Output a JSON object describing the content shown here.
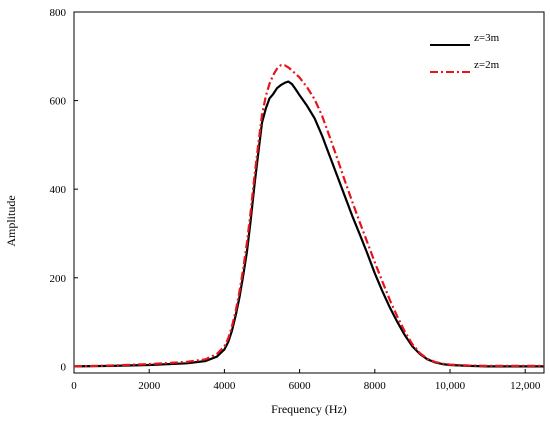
{
  "chart_data": {
    "type": "line",
    "title": "",
    "xlabel": "Frequency (Hz)",
    "ylabel": "Amplitude",
    "xlim": [
      0,
      12500
    ],
    "ylim": [
      -15,
      800
    ],
    "xticks": [
      {
        "value": 0,
        "label": "0"
      },
      {
        "value": 2000,
        "label": "2000"
      },
      {
        "value": 4000,
        "label": "4000"
      },
      {
        "value": 6000,
        "label": "6000"
      },
      {
        "value": 8000,
        "label": "8000"
      },
      {
        "value": 10000,
        "label": "10,000"
      },
      {
        "value": 12000,
        "label": "12,000"
      }
    ],
    "yticks": [
      {
        "value": 0,
        "label": "0"
      },
      {
        "value": 200,
        "label": "200"
      },
      {
        "value": 400,
        "label": "400"
      },
      {
        "value": 600,
        "label": "600"
      },
      {
        "value": 800,
        "label": "800"
      }
    ],
    "grid": false,
    "legend_position": "top-right",
    "series": [
      {
        "name": "z=3m",
        "color": "#000000",
        "style": "solid",
        "x": [
          0,
          1000,
          2000,
          3000,
          3500,
          3800,
          4000,
          4100,
          4200,
          4300,
          4400,
          4500,
          4600,
          4700,
          4800,
          4900,
          5000,
          5100,
          5200,
          5300,
          5400,
          5500,
          5600,
          5700,
          5800,
          5900,
          6000,
          6200,
          6400,
          6600,
          6800,
          7000,
          7200,
          7400,
          7600,
          7800,
          8000,
          8200,
          8400,
          8600,
          8800,
          9000,
          9200,
          9400,
          9600,
          9800,
          10000,
          10500,
          11000,
          12000,
          12500
        ],
        "y": [
          0,
          1,
          3,
          7,
          12,
          22,
          38,
          55,
          80,
          115,
          155,
          205,
          260,
          330,
          410,
          480,
          550,
          582,
          605,
          615,
          628,
          635,
          640,
          643,
          637,
          625,
          612,
          588,
          560,
          520,
          475,
          430,
          385,
          340,
          298,
          255,
          210,
          170,
          133,
          100,
          70,
          45,
          28,
          16,
          9,
          5,
          3,
          1,
          0,
          0,
          0
        ]
      },
      {
        "name": "z=2m",
        "color": "#e8141b",
        "style": "dashdot",
        "x": [
          0,
          1000,
          2000,
          3000,
          3500,
          3800,
          4000,
          4100,
          4200,
          4300,
          4400,
          4500,
          4600,
          4700,
          4800,
          4900,
          5000,
          5100,
          5200,
          5300,
          5400,
          5500,
          5600,
          5700,
          5800,
          5900,
          6000,
          6200,
          6400,
          6600,
          6800,
          7000,
          7200,
          7400,
          7600,
          7800,
          8000,
          8200,
          8400,
          8600,
          8800,
          9000,
          9200,
          9400,
          9600,
          9800,
          10000,
          10500,
          11000,
          12000,
          12500
        ],
        "y": [
          0,
          2,
          5,
          10,
          16,
          28,
          45,
          63,
          90,
          125,
          168,
          220,
          280,
          350,
          430,
          500,
          568,
          610,
          638,
          658,
          672,
          680,
          680,
          675,
          668,
          660,
          652,
          630,
          603,
          565,
          518,
          470,
          420,
          372,
          325,
          280,
          235,
          192,
          150,
          112,
          78,
          50,
          30,
          17,
          10,
          6,
          4,
          2,
          1,
          1,
          1
        ]
      }
    ]
  }
}
